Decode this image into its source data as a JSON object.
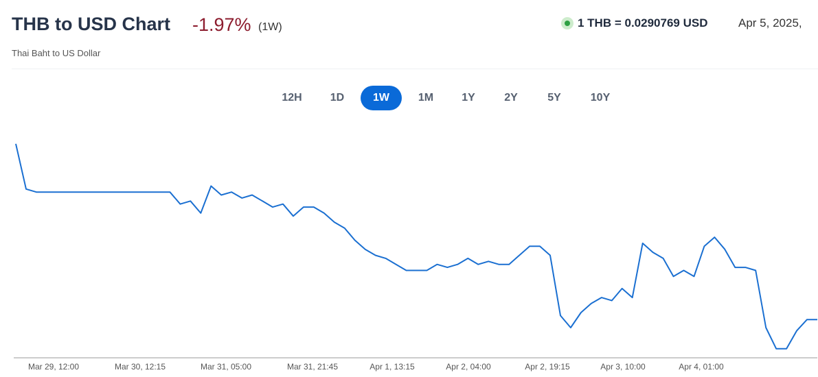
{
  "header": {
    "title": "THB to USD Chart",
    "change": "-1.97%",
    "period": "(1W)",
    "subtitle": "Thai Baht to US Dollar",
    "rate": "1 THB = 0.0290769 USD",
    "date": "Apr 5, 2025,"
  },
  "ranges": {
    "options": [
      "12H",
      "1D",
      "1W",
      "1M",
      "1Y",
      "2Y",
      "5Y",
      "10Y"
    ],
    "active": "1W"
  },
  "chart_data": {
    "type": "line",
    "xtick_labels": [
      "Mar 29, 12:00",
      "Mar 30, 12:15",
      "Mar 31, 05:00",
      "Mar 31, 21:45",
      "Apr 1, 13:15",
      "Apr 2, 04:00",
      "Apr 2, 19:15",
      "Apr 3, 10:00",
      "Apr 4, 01:00"
    ],
    "ylim": [
      0.02895,
      0.02968
    ],
    "series": [
      {
        "name": "THB/USD",
        "color": "#1a6fd1",
        "values": [
          0.02966,
          0.02951,
          0.0295,
          0.0295,
          0.0295,
          0.0295,
          0.0295,
          0.0295,
          0.0295,
          0.0295,
          0.0295,
          0.0295,
          0.0295,
          0.0295,
          0.0295,
          0.0295,
          0.02946,
          0.02947,
          0.02943,
          0.02952,
          0.02949,
          0.0295,
          0.02948,
          0.02949,
          0.02947,
          0.02945,
          0.02946,
          0.02942,
          0.02945,
          0.02945,
          0.02943,
          0.0294,
          0.02938,
          0.02934,
          0.02931,
          0.02929,
          0.02928,
          0.02926,
          0.02924,
          0.02924,
          0.02924,
          0.02926,
          0.02925,
          0.02926,
          0.02928,
          0.02926,
          0.02927,
          0.02926,
          0.02926,
          0.02929,
          0.02932,
          0.02932,
          0.02929,
          0.02909,
          0.02905,
          0.0291,
          0.02913,
          0.02915,
          0.02914,
          0.02918,
          0.02915,
          0.02933,
          0.0293,
          0.02928,
          0.02922,
          0.02924,
          0.02922,
          0.02932,
          0.02935,
          0.02931,
          0.02925,
          0.02925,
          0.02924,
          0.02905,
          0.02898,
          0.02898,
          0.02904,
          0.0290769,
          0.0290769
        ]
      }
    ]
  }
}
